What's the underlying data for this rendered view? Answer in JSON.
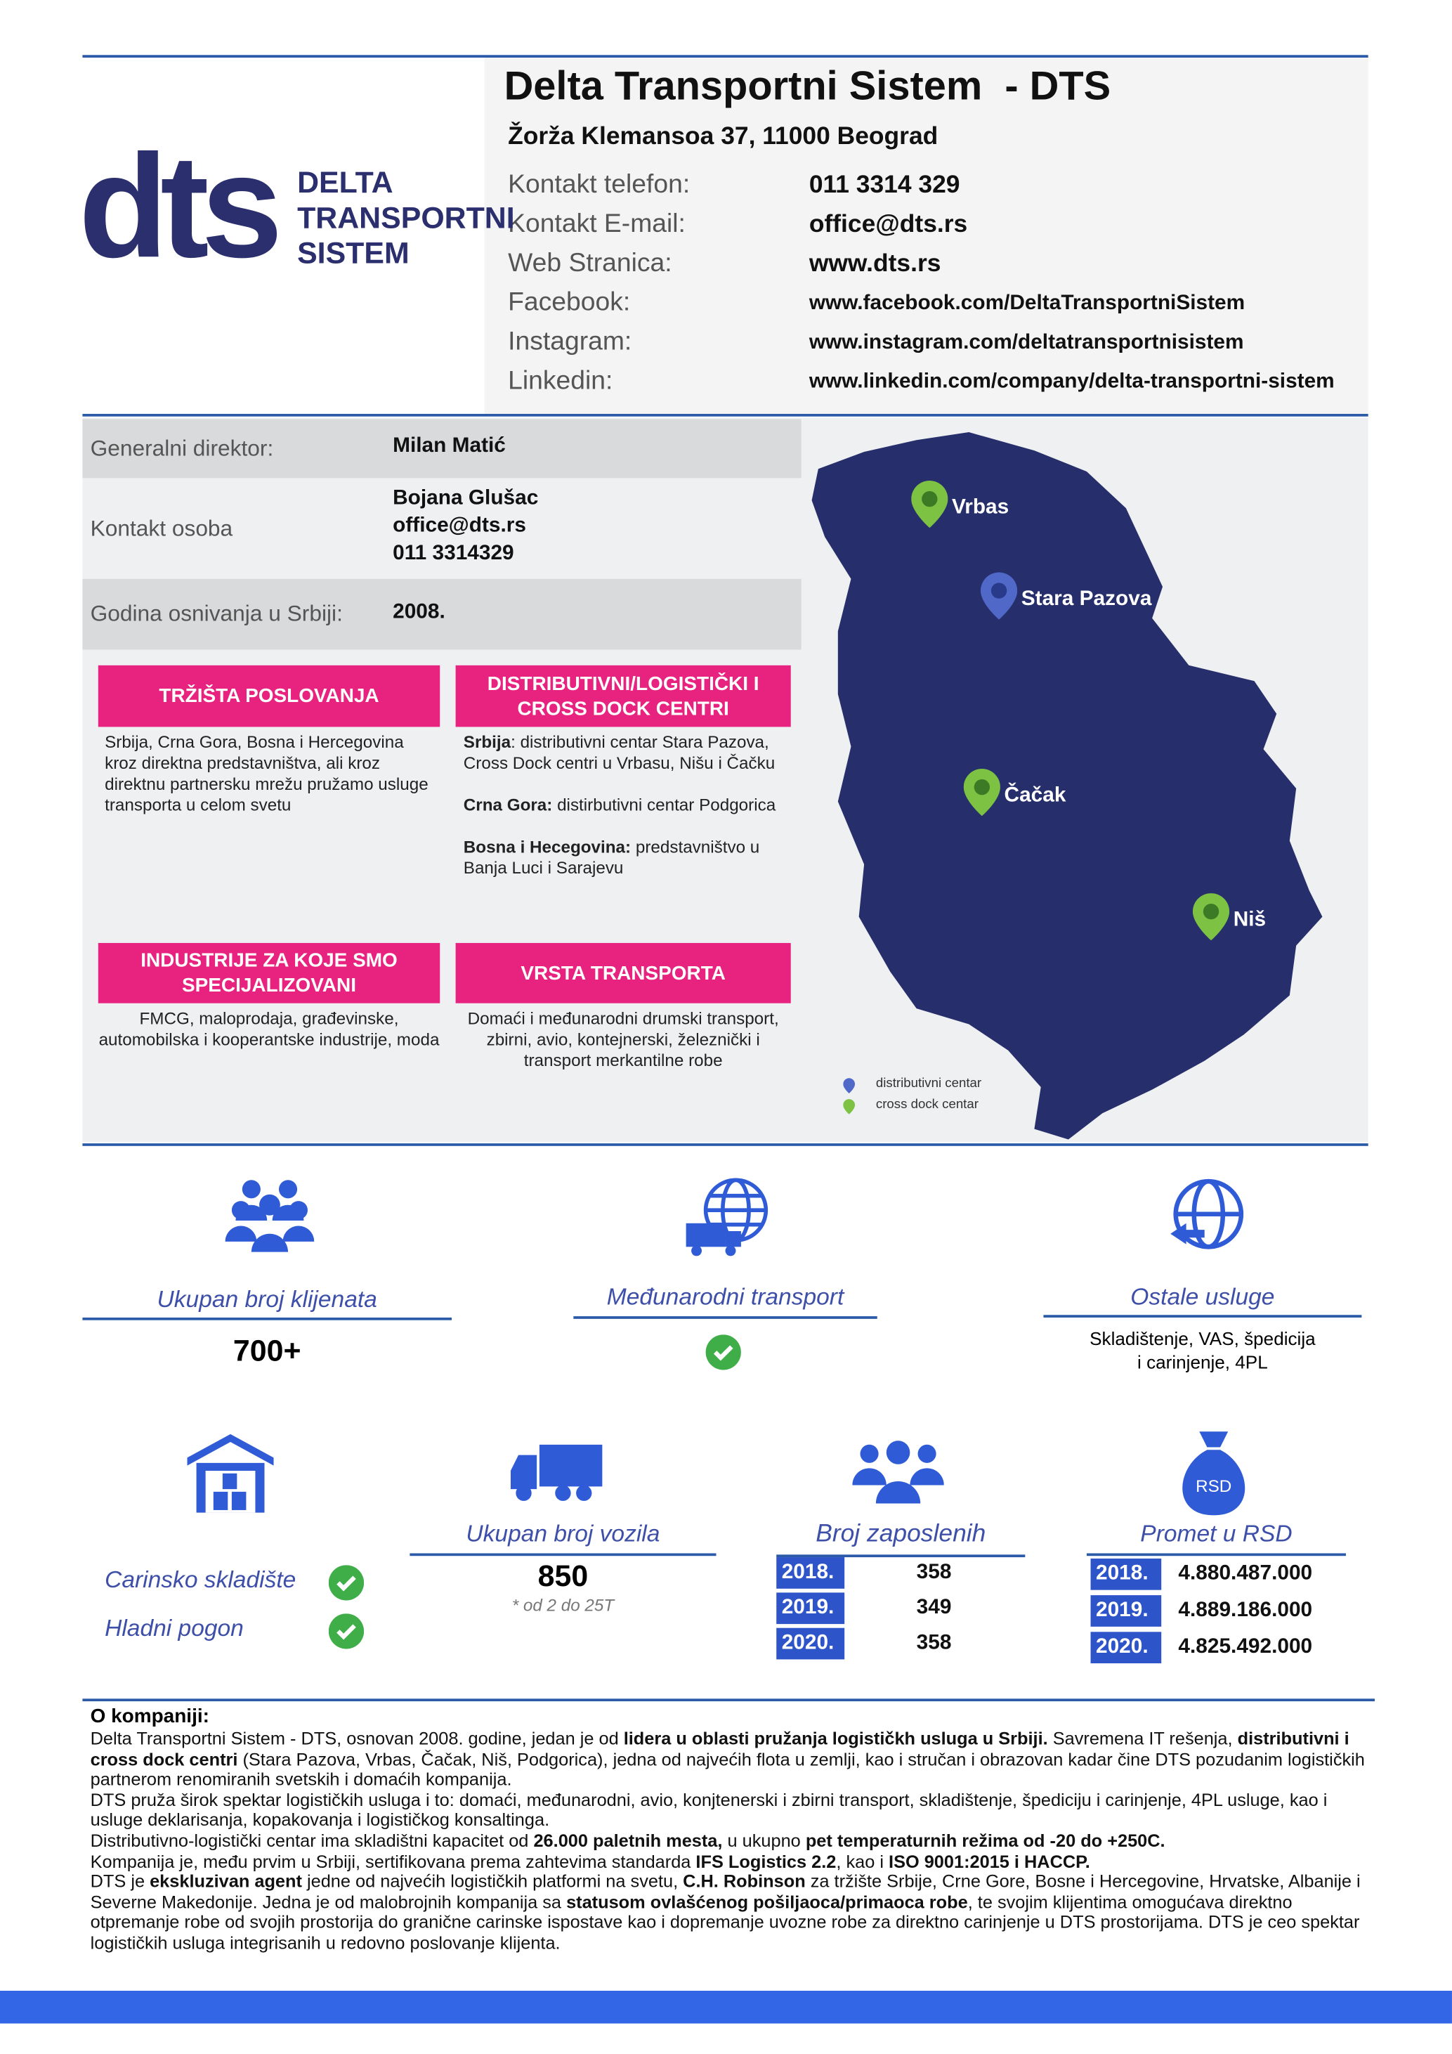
{
  "header": {
    "title": "Delta Transportni Sistem  - DTS",
    "address": "Žorža Klemansoa 37, 11000 Beograd",
    "contacts": [
      {
        "label": "Kontakt telefon:",
        "value": "011 3314 329"
      },
      {
        "label": "Kontakt E-mail:",
        "value": "office@dts.rs"
      },
      {
        "label": "Web Stranica:",
        "value": "www.dts.rs"
      },
      {
        "label": "Facebook:",
        "value": "www.facebook.com/DeltaTransportniSistem"
      },
      {
        "label": "Instagram:",
        "value": "www.instagram.com/deltatransportnisistem"
      },
      {
        "label": "Linkedin:",
        "value": "www.linkedin.com/company/delta-transportni-sistem"
      }
    ]
  },
  "logo": {
    "mark": "dts",
    "name": [
      "DELTA",
      "TRANSPORTNI",
      "SISTEM"
    ]
  },
  "info": {
    "rows": [
      {
        "label": "Generalni direktor:",
        "value": [
          "Milan Matić"
        ]
      },
      {
        "label": "Kontakt osoba",
        "value": [
          "Bojana Glušac",
          "office@dts.rs",
          "011 3314329"
        ]
      },
      {
        "label": "Godina osnivanja u Srbiji:",
        "value": [
          "2008."
        ]
      }
    ]
  },
  "sections": [
    {
      "title": "TRŽIŠTA POSLOVANJA",
      "paragraphs": [
        [
          {
            "t": "Srbija, Crna Gora, Bosna i Hercegovina kroz direktna predstavništva, ali kroz direktnu partnersku mrežu pružamo usluge transporta u celom svetu"
          }
        ]
      ]
    },
    {
      "title": "DISTRIBUTIVNI/LOGISTIČKI I CROSS DOCK CENTRI",
      "paragraphs": [
        [
          {
            "t": "Srbija",
            "b": true
          },
          {
            "t": ": distributivni centar Stara Pazova, Cross Dock centri u Vrbasu, Nišu i Čačku"
          }
        ],
        [
          {
            "t": "Crna Gora:",
            "b": true
          },
          {
            "t": " distirbutivni centar Podgorica"
          }
        ],
        [
          {
            "t": "Bosna i Hecegovina:",
            "b": true
          },
          {
            "t": " predstavništvo u Banja Luci i Sarajevu"
          }
        ]
      ]
    },
    {
      "title": "INDUSTRIJE ZA KOJE SMO SPECIJALIZOVANI",
      "paragraphs": [
        [
          {
            "t": "FMCG, maloprodaja, građevinske, automobilska i kooperantske industrije, moda"
          }
        ]
      ]
    },
    {
      "title": "VRSTA TRANSPORTA",
      "paragraphs": [
        [
          {
            "t": "Domaći i međunarodni drumski transport, zbirni, avio, kontejnerski, železnički i transport merkantilne robe"
          }
        ]
      ]
    }
  ],
  "map": {
    "cities": [
      {
        "name": "Vrbas",
        "kind": "cross dock"
      },
      {
        "name": "Stara Pazova",
        "kind": "distributivni"
      },
      {
        "name": "Čačak",
        "kind": "cross dock"
      },
      {
        "name": "Niš",
        "kind": "cross dock"
      }
    ],
    "legend": [
      "distributivni centar",
      "cross dock centar"
    ]
  },
  "stats": {
    "clients": {
      "label": "Ukupan broj klijenata",
      "value": "700+"
    },
    "international": {
      "label": "Međunarodni transport"
    },
    "other": {
      "label": "Ostale usluge",
      "value": [
        "Skladištenje, VAS, špedicija",
        "i carinjenje, 4PL"
      ]
    },
    "warehouse": {
      "items": [
        "Carinsko skladište",
        "Hladni pogon"
      ]
    },
    "vehicles": {
      "label": "Ukupan broj vozila",
      "value": "850",
      "note": "* od 2 do 25T"
    },
    "employees": {
      "label": "Broj zaposlenih",
      "rows": [
        [
          "2018.",
          "358"
        ],
        [
          "2019.",
          "349"
        ],
        [
          "2020.",
          "358"
        ]
      ]
    },
    "revenue": {
      "label": "Promet u RSD",
      "rows": [
        [
          "2018.",
          "4.880.487.000"
        ],
        [
          "2019.",
          "4.889.186.000"
        ],
        [
          "2020.",
          "4.825.492.000"
        ]
      ]
    }
  },
  "about": {
    "title": "O kompaniji:",
    "paragraphs": [
      [
        {
          "t": "Delta Transportni Sistem - DTS, osnovan 2008. godine, jedan je od "
        },
        {
          "t": "lidera u oblasti pružanja logističkh usluga u Srbiji.",
          "b": true
        },
        {
          "t": " Savremena IT rešenja, "
        },
        {
          "t": "distributivni i cross dock centri",
          "b": true
        },
        {
          "t": " (Stara Pazova, Vrbas, Čačak, Niš, Podgorica), jedna od najvećih flota u zemlji, kao i stručan i obrazovan kadar čine DTS pozudanim logističkih partnerom renomiranih svetskih i domaćih kompanija."
        }
      ],
      [
        {
          "t": "DTS pruža širok spektar logističkih usluga i to: domaći, međunarodni, avio, konjtenerski i zbirni transport, skladištenje, špediciju i carinjenje, 4PL usluge, kao i usluge deklarisanja, kopakovanja i logističkog konsaltinga."
        }
      ],
      [
        {
          "t": "Distributivno-logistički centar ima skladištni kapacitet od "
        },
        {
          "t": "26.000 paletnih mesta,",
          "b": true
        },
        {
          "t": " u ukupno "
        },
        {
          "t": "pet temperaturnih režima od -20 do +250C.",
          "b": true
        }
      ],
      [
        {
          "t": "Kompanija je, među prvim u Srbiji, sertifikovana prema zahtevima standarda "
        },
        {
          "t": "IFS Logistics 2.2",
          "b": true
        },
        {
          "t": ", kao i "
        },
        {
          "t": "ISO 9001:2015 i HACCP.",
          "b": true
        }
      ],
      [
        {
          "t": "DTS je "
        },
        {
          "t": "ekskluzivan agent",
          "b": true
        },
        {
          "t": " jedne od najvećih logističkih platformi na svetu, "
        },
        {
          "t": "C.H. Robinson",
          "b": true
        },
        {
          "t": " za tržište Srbije, Crne Gore, Bosne i Hercegovine, Hrvatske, Albanije i Severne Makedonije. Jedna je od malobrojnih kompanija sa "
        },
        {
          "t": "statusom ovlašćenog pošiljaoca/primaoca robe",
          "b": true
        },
        {
          "t": ", te svojim klijentima omogućava direktno otpremanje robe od svojih prostorija do granične carinske ispostave kao i dopremanje uvozne robe za direktno carinjenje u DTS prostorijama. DTS je ceo spektar logističkih usluga integrisanih u redovno poslovanje klijenta."
        }
      ]
    ]
  }
}
